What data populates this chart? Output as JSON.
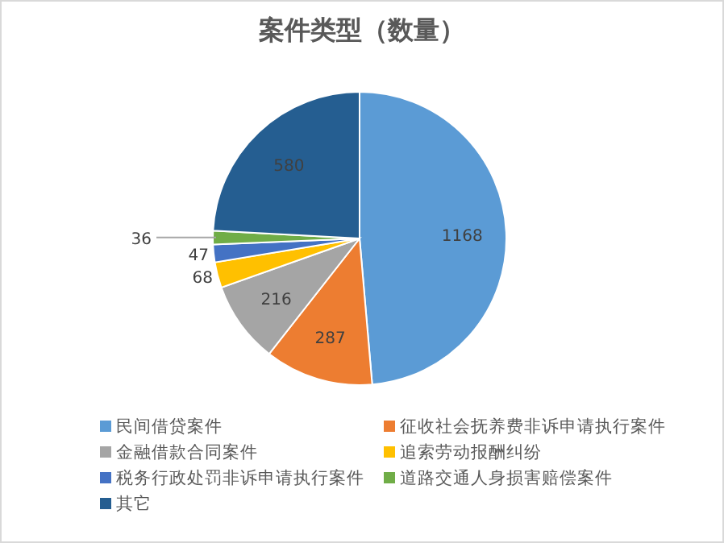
{
  "chart_data": {
    "type": "pie",
    "title": "案件类型（数量）",
    "categories": [
      "民间借贷案件",
      "征收社会抚养费非诉申请执行案件",
      "金融借款合同案件",
      "追索劳动报酬纠纷",
      "税务行政处罚非诉申请执行案件",
      "道路交通人身损害赔偿案件",
      "其它"
    ],
    "values": [
      1168,
      287,
      216,
      68,
      47,
      36,
      580
    ],
    "colors": [
      "#5b9bd5",
      "#ed7d31",
      "#a5a5a5",
      "#ffc000",
      "#4472c4",
      "#70ad47",
      "#255e91"
    ],
    "data_labels": true,
    "legend": "bottom"
  }
}
